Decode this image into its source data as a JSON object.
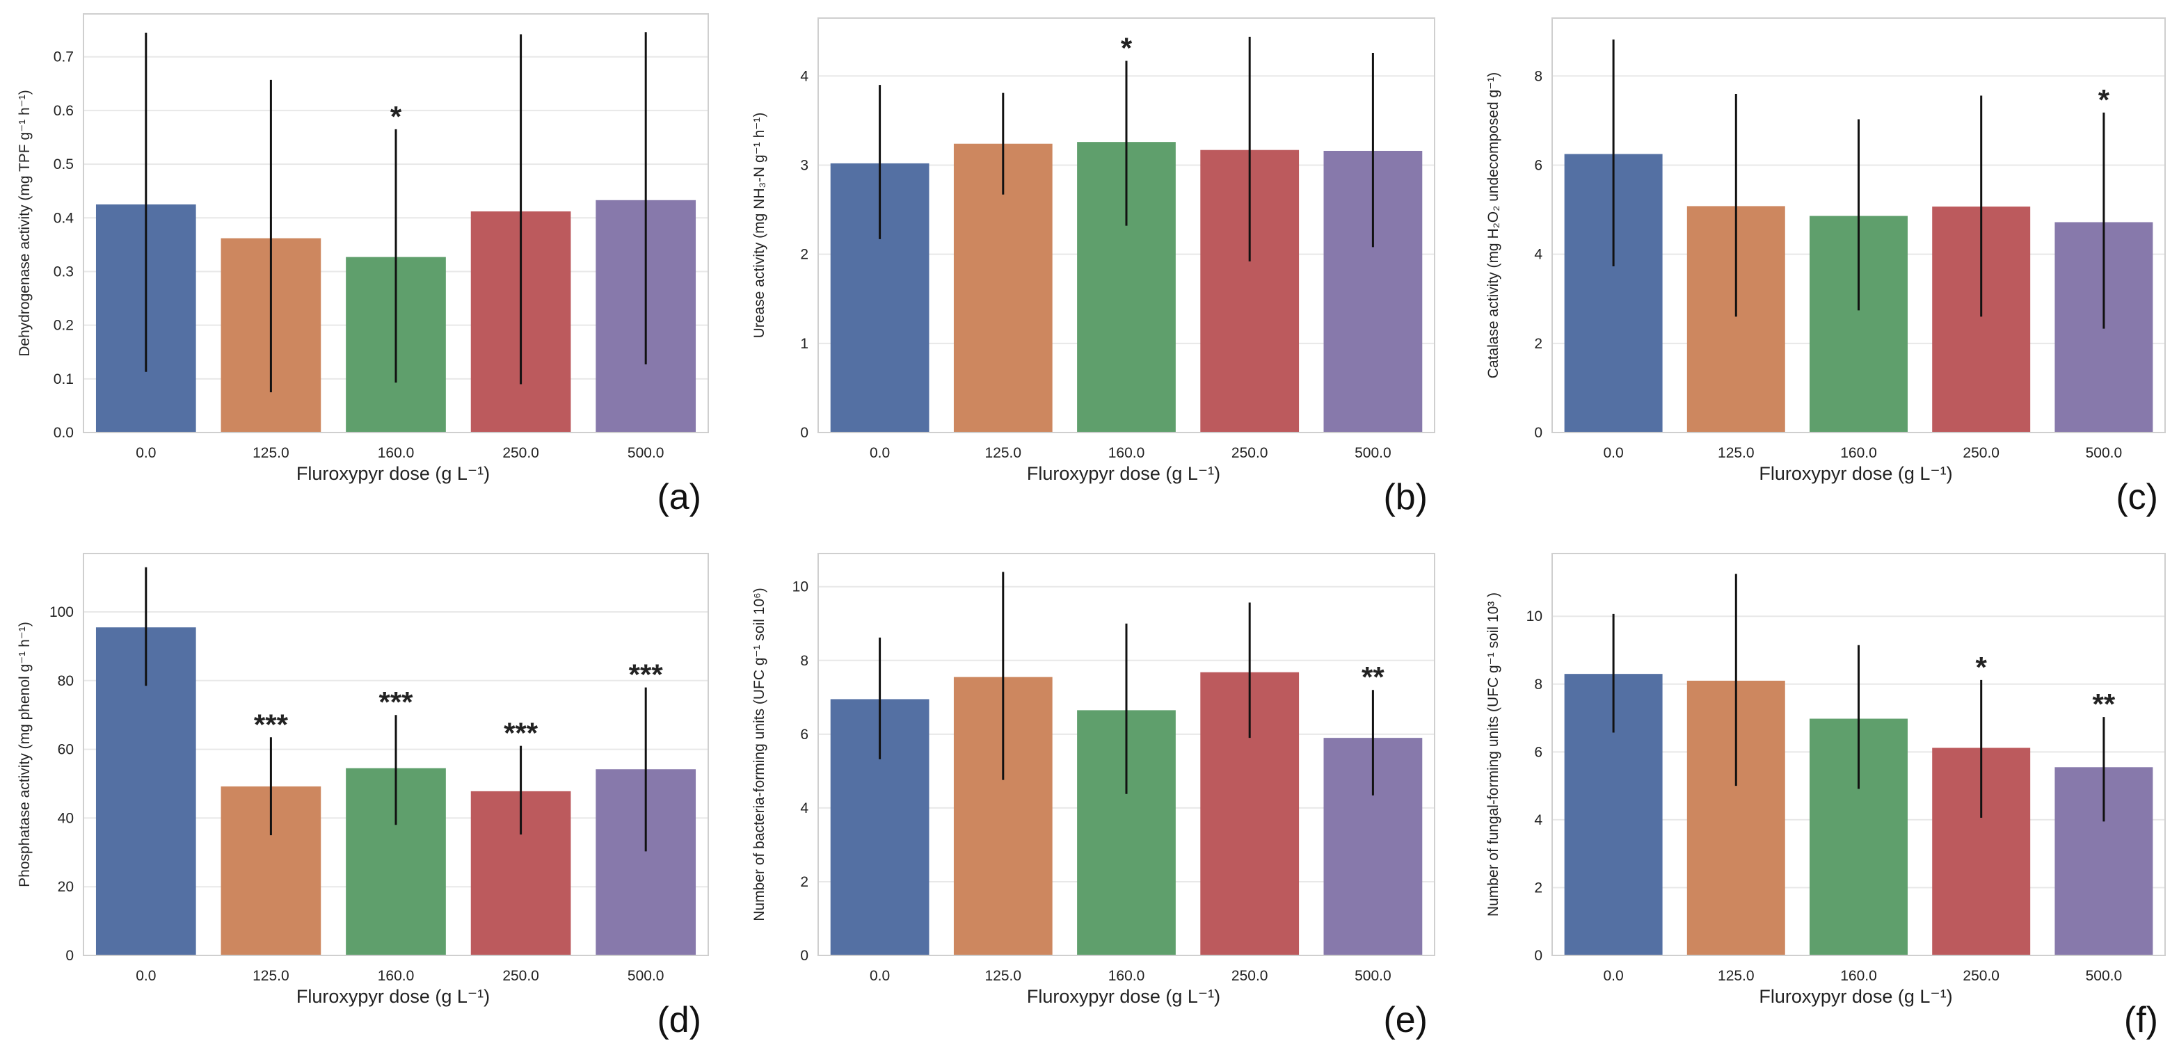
{
  "chart_data": [
    {
      "type": "bar",
      "panel_label": "(a)",
      "categories": [
        "0.0",
        "125.0",
        "160.0",
        "250.0",
        "500.0"
      ],
      "values": [
        0.425,
        0.362,
        0.327,
        0.412,
        0.433
      ],
      "error_low": [
        0.113,
        0.075,
        0.093,
        0.09,
        0.127
      ],
      "error_high": [
        0.745,
        0.657,
        0.565,
        0.742,
        0.746
      ],
      "significance": [
        "",
        "",
        "*",
        "",
        ""
      ],
      "ylabel": "Dehydrogenase activity (mg TPF g⁻¹ h⁻¹)",
      "xlabel": "Fluroxypyr  dose (g L⁻¹)",
      "ylim": [
        0,
        0.78
      ],
      "yticks": [
        0.0,
        0.1,
        0.2,
        0.3,
        0.4,
        0.5,
        0.6,
        0.7
      ],
      "ytick_labels": [
        "0.0",
        "0.1",
        "0.2",
        "0.3",
        "0.4",
        "0.5",
        "0.6",
        "0.7"
      ],
      "grid": true
    },
    {
      "type": "bar",
      "panel_label": "(b)",
      "categories": [
        "0.0",
        "125.0",
        "160.0",
        "250.0",
        "500.0"
      ],
      "values": [
        3.02,
        3.24,
        3.26,
        3.17,
        3.16
      ],
      "error_low": [
        2.17,
        2.67,
        2.32,
        1.92,
        2.08
      ],
      "error_high": [
        3.9,
        3.81,
        4.17,
        4.44,
        4.26
      ],
      "significance": [
        "",
        "",
        "*",
        "",
        ""
      ],
      "ylabel": "Urease activity (mg NH₃-N g⁻¹ h⁻¹)",
      "xlabel": "Fluroxypyr  dose (g L⁻¹)",
      "ylim": [
        0,
        4.65
      ],
      "yticks": [
        0,
        1,
        2,
        3,
        4
      ],
      "ytick_labels": [
        "0",
        "1",
        "2",
        "3",
        "4"
      ],
      "grid": true
    },
    {
      "type": "bar",
      "panel_label": "(c)",
      "categories": [
        "0.0",
        "125.0",
        "160.0",
        "250.0",
        "500.0"
      ],
      "values": [
        6.25,
        5.08,
        4.86,
        5.07,
        4.72
      ],
      "error_low": [
        3.73,
        2.6,
        2.74,
        2.6,
        2.33
      ],
      "error_high": [
        8.82,
        7.6,
        7.03,
        7.56,
        7.18
      ],
      "significance": [
        "",
        "",
        "",
        "",
        "*"
      ],
      "ylabel": "Catalase activity (mg H₂O₂ undecomposed g⁻¹)",
      "xlabel": "Fluroxypyr  dose (g L⁻¹)",
      "ylim": [
        0,
        9.3
      ],
      "yticks": [
        0,
        2,
        4,
        6,
        8
      ],
      "ytick_labels": [
        "0",
        "2",
        "4",
        "6",
        "8"
      ],
      "grid": true
    },
    {
      "type": "bar",
      "panel_label": "(d)",
      "categories": [
        "0.0",
        "125.0",
        "160.0",
        "250.0",
        "500.0"
      ],
      "values": [
        95.5,
        49.2,
        54.5,
        47.8,
        54.2
      ],
      "error_low": [
        78.5,
        35.0,
        38.0,
        35.2,
        30.3
      ],
      "error_high": [
        113.0,
        63.5,
        70.0,
        61.0,
        78.0
      ],
      "significance": [
        "",
        "***",
        "***",
        "***",
        "***"
      ],
      "ylabel": "Phosphatase activity  (mg phenol  g⁻¹ h⁻¹)",
      "xlabel": "Fluroxypyr  dose (g L⁻¹)",
      "ylim": [
        0,
        117
      ],
      "yticks": [
        0,
        20,
        40,
        60,
        80,
        100
      ],
      "ytick_labels": [
        "0",
        "20",
        "40",
        "60",
        "80",
        "100"
      ],
      "grid": true
    },
    {
      "type": "bar",
      "panel_label": "(e)",
      "categories": [
        "0.0",
        "125.0",
        "160.0",
        "250.0",
        "500.0"
      ],
      "values": [
        6.95,
        7.55,
        6.65,
        7.68,
        5.9
      ],
      "error_low": [
        5.32,
        4.76,
        4.38,
        5.9,
        4.34
      ],
      "error_high": [
        8.62,
        10.4,
        9.0,
        9.57,
        7.2
      ],
      "significance": [
        "",
        "",
        "",
        "",
        "**"
      ],
      "ylabel": "Number of bacteria-forming units  (UFC  g⁻¹ soil  10⁶)",
      "xlabel": "Fluroxypyr  dose (g L⁻¹)",
      "ylim": [
        0,
        10.9
      ],
      "yticks": [
        0,
        2,
        4,
        6,
        8,
        10
      ],
      "ytick_labels": [
        "0",
        "2",
        "4",
        "6",
        "8",
        "10"
      ],
      "grid": true
    },
    {
      "type": "bar",
      "panel_label": "(f)",
      "categories": [
        "0.0",
        "125.0",
        "160.0",
        "250.0",
        "500.0"
      ],
      "values": [
        8.3,
        8.1,
        6.98,
        6.12,
        5.55
      ],
      "error_low": [
        6.57,
        5.0,
        4.91,
        4.06,
        3.95
      ],
      "error_high": [
        10.07,
        11.25,
        9.15,
        8.12,
        7.03
      ],
      "significance": [
        "",
        "",
        "",
        "*",
        "**"
      ],
      "ylabel": "Number of fungal-forming units (UFC g⁻¹ soil  10³ )",
      "xlabel": "Fluroxypyr  dose (g L⁻¹)",
      "ylim": [
        0,
        11.85
      ],
      "yticks": [
        0,
        2,
        4,
        6,
        8,
        10
      ],
      "ytick_labels": [
        "0",
        "2",
        "4",
        "6",
        "8",
        "10"
      ],
      "grid": true
    }
  ],
  "colors": [
    "#5470a3",
    "#cd875f",
    "#5f9f6c",
    "#bc5a5d",
    "#8779ab"
  ],
  "axis_color": "#cfcfcf",
  "grid_color": "#e8e8e8",
  "error_bar_color": "#111111"
}
